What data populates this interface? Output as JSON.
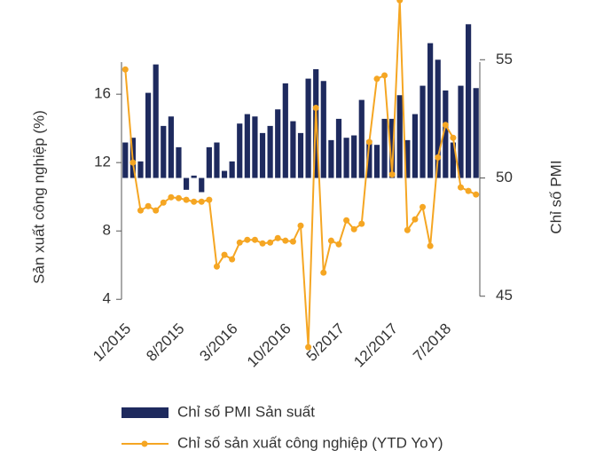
{
  "chart_data": {
    "type": "bar_line",
    "y_label": "Sản xuất công nghiệp (%)",
    "y2_label": "Chỉ số PMI",
    "categories": [
      "1/2015",
      null,
      null,
      null,
      null,
      null,
      null,
      "8/2015",
      null,
      null,
      null,
      null,
      null,
      null,
      "3/2016",
      null,
      null,
      null,
      null,
      null,
      null,
      "10/2016",
      null,
      null,
      null,
      null,
      null,
      null,
      "5/2017",
      null,
      null,
      null,
      null,
      null,
      null,
      "12/2017",
      null,
      null,
      null,
      null,
      null,
      null,
      "7/2018",
      null,
      null,
      null,
      null
    ],
    "series": [
      {
        "name": "Chỉ số PMI Sản suất",
        "type": "bar",
        "axis": "y2",
        "color": "#1e2a5e",
        "values": [
          51.5,
          51.7,
          50.7,
          53.6,
          54.8,
          52.2,
          52.6,
          51.3,
          49.5,
          50.1,
          49.4,
          51.3,
          51.5,
          50.3,
          50.7,
          52.3,
          52.7,
          52.6,
          51.9,
          52.2,
          52.9,
          54.0,
          52.4,
          51.9,
          54.2,
          54.6,
          54.1,
          51.6,
          52.5,
          51.7,
          51.8,
          53.3,
          51.6,
          51.4,
          52.5,
          52.5,
          53.5,
          51.6,
          52.7,
          53.9,
          55.7,
          55.0,
          53.7,
          51.5,
          53.9,
          56.5,
          53.8
        ]
      },
      {
        "name": "Chỉ số sản xuất công nghiệp  (YTD YoY)",
        "type": "line",
        "axis": "y",
        "color": "#f5a623",
        "values": [
          17.45,
          12.0,
          9.2,
          9.45,
          9.2,
          9.66,
          9.97,
          9.92,
          9.82,
          9.71,
          9.71,
          9.82,
          5.92,
          6.6,
          6.34,
          7.32,
          7.48,
          7.48,
          7.27,
          7.32,
          7.58,
          7.43,
          7.38,
          8.31,
          1.2,
          15.2,
          5.56,
          7.43,
          7.22,
          8.62,
          8.1,
          8.42,
          13.2,
          16.9,
          17.1,
          11.3,
          21.5,
          8.05,
          8.68,
          9.4,
          7.12,
          12.3,
          14.2,
          13.45,
          10.55,
          10.34,
          10.13
        ]
      }
    ],
    "ylim": [
      1,
      21.2
    ],
    "yticks": [
      4,
      8,
      12,
      16
    ],
    "y2lim": [
      42.7,
      57.3
    ],
    "y2ticks": [
      45,
      50,
      55
    ],
    "bar_base": 50
  }
}
